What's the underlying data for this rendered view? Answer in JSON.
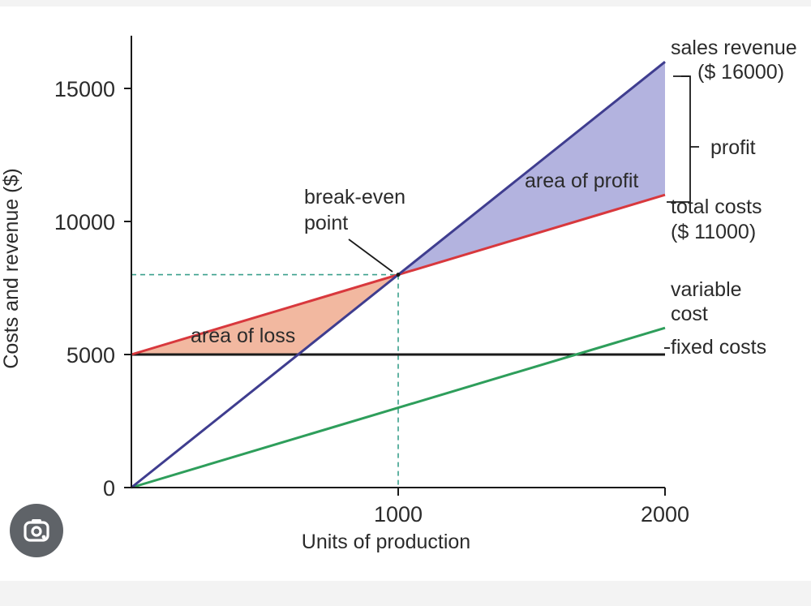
{
  "chart_data": {
    "type": "line",
    "xlabel": "Units of production",
    "ylabel": "Costs and revenue ($)",
    "xlim": [
      0,
      2000
    ],
    "ylim": [
      0,
      15000
    ],
    "x_ticks": [
      "1000",
      "2000"
    ],
    "y_ticks": [
      "0",
      "5000",
      "10000",
      "15000"
    ],
    "x_tick_values": [
      1000,
      2000
    ],
    "y_tick_values": [
      0,
      5000,
      10000,
      15000
    ],
    "series": [
      {
        "name": "sales revenue",
        "color": "#3f3d8f",
        "x": [
          0,
          2000
        ],
        "y": [
          0,
          16000
        ]
      },
      {
        "name": "total costs",
        "color": "#d8383d",
        "x": [
          0,
          2000
        ],
        "y": [
          5000,
          11000
        ]
      },
      {
        "name": "variable cost",
        "color": "#2e9e5b",
        "x": [
          0,
          2000
        ],
        "y": [
          0,
          6000
        ]
      },
      {
        "name": "fixed costs",
        "color": "#1a1a1a",
        "x": [
          0,
          2000
        ],
        "y": [
          5000,
          5000
        ]
      }
    ],
    "break_even": {
      "x": 1000,
      "y": 8000
    },
    "areas": {
      "loss_color": "#f2b8a0",
      "profit_color": "#b3b3df"
    },
    "annotations": {
      "sales_revenue_line1": "sales revenue",
      "sales_revenue_line2": "($ 16000)",
      "profit": "profit",
      "total_costs_line1": "total costs",
      "total_costs_line2": "($ 11000)",
      "variable_line1": "variable",
      "variable_line2": "cost",
      "fixed_costs": "fixed costs",
      "break_even_line1": "break-even",
      "break_even_line2": "point",
      "area_of_loss": "area of loss",
      "area_of_profit": "area of profit"
    }
  },
  "ui": {
    "lens_icon": "google-lens-camera-icon",
    "lens_bg": "#5f6368"
  }
}
